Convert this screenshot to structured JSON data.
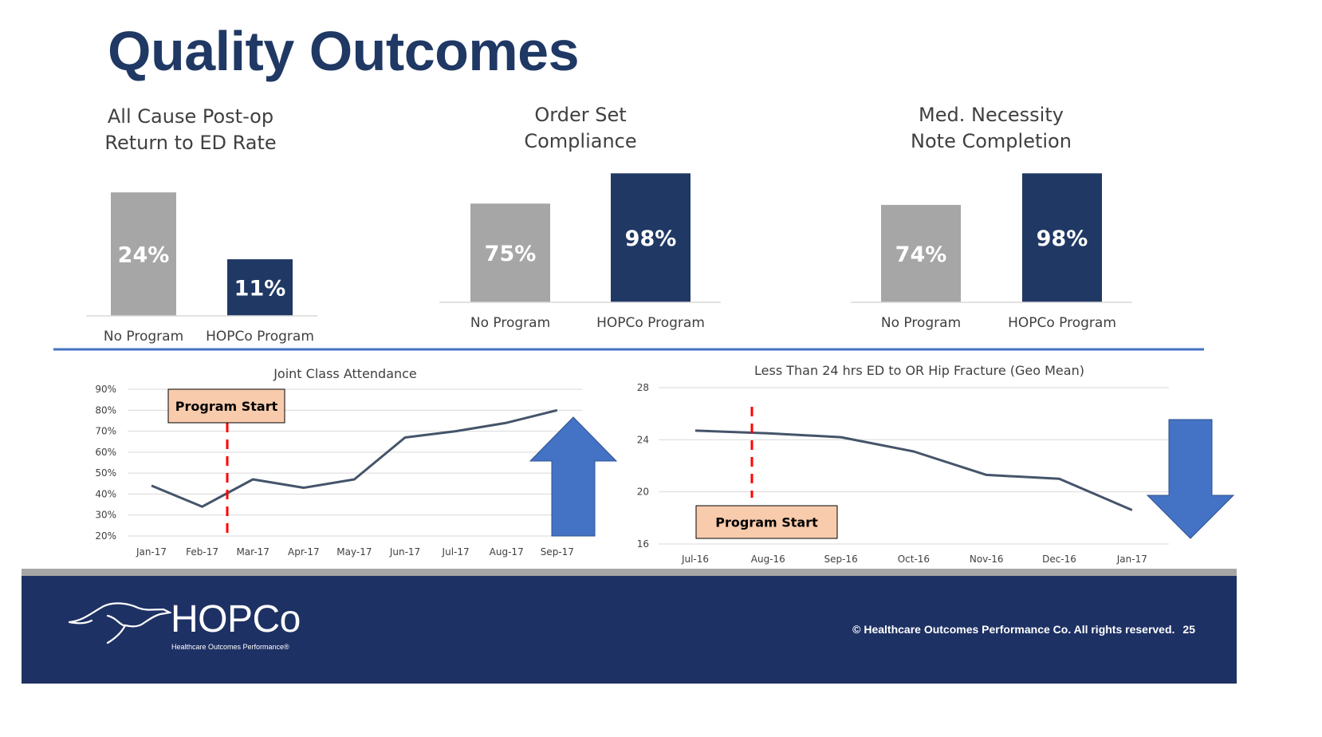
{
  "slide": {
    "title": "Quality Outcomes",
    "page_number": "25",
    "copyright": "© Healthcare Outcomes Performance Co. All rights reserved."
  },
  "logo": {
    "name": "HOPCo",
    "tagline": "Healthcare Outcomes Performance®"
  },
  "colors": {
    "title": "#1f3864",
    "no_program_bar": "#a6a6a6",
    "program_bar": "#203864",
    "line": "#44546a",
    "arrow": "#4472c4",
    "marker": "#ff0000",
    "callout_fill": "#f8cbad",
    "footer": "#1e3164"
  },
  "chart_data": [
    {
      "type": "bar",
      "title": "All Cause Post-op\nReturn to ED Rate",
      "categories": [
        "No Program",
        "HOPCo Program"
      ],
      "values": [
        24,
        11
      ],
      "value_labels": [
        "24%",
        "11%"
      ],
      "unit": "%"
    },
    {
      "type": "bar",
      "title": "Order Set\nCompliance",
      "categories": [
        "No Program",
        "HOPCo Program"
      ],
      "values": [
        75,
        98
      ],
      "value_labels": [
        "75%",
        "98%"
      ],
      "unit": "%"
    },
    {
      "type": "bar",
      "title": "Med. Necessity\nNote Completion",
      "categories": [
        "No Program",
        "HOPCo Program"
      ],
      "values": [
        74,
        98
      ],
      "value_labels": [
        "74%",
        "98%"
      ],
      "unit": "%"
    },
    {
      "type": "line",
      "title": "Joint Class Attendance",
      "x": [
        "Jan-17",
        "Feb-17",
        "Mar-17",
        "Apr-17",
        "May-17",
        "Jun-17",
        "Jul-17",
        "Aug-17",
        "Sep-17"
      ],
      "values": [
        44,
        34,
        47,
        43,
        47,
        67,
        70,
        74,
        80
      ],
      "yticks": [
        20,
        30,
        40,
        50,
        60,
        70,
        80,
        90
      ],
      "ytick_labels": [
        "20%",
        "30%",
        "40%",
        "50%",
        "60%",
        "70%",
        "80%",
        "90%"
      ],
      "ylim": [
        20,
        90
      ],
      "grid": true,
      "annotation": "Program Start",
      "program_start_between": [
        "Feb-17",
        "Mar-17"
      ],
      "trend_arrow": "up"
    },
    {
      "type": "line",
      "title": "Less Than 24 hrs ED to OR Hip Fracture (Geo Mean)",
      "x": [
        "Jul-16",
        "Aug-16",
        "Sep-16",
        "Oct-16",
        "Nov-16",
        "Dec-16",
        "Jan-17"
      ],
      "values": [
        24.7,
        24.5,
        24.2,
        23.1,
        21.3,
        21.0,
        18.6
      ],
      "yticks": [
        16,
        20,
        24,
        28
      ],
      "ytick_labels": [
        "16",
        "20",
        "24",
        "28"
      ],
      "ylim": [
        16,
        28
      ],
      "grid": true,
      "annotation": "Program Start",
      "program_start_at": "Aug-16",
      "trend_arrow": "down"
    }
  ]
}
